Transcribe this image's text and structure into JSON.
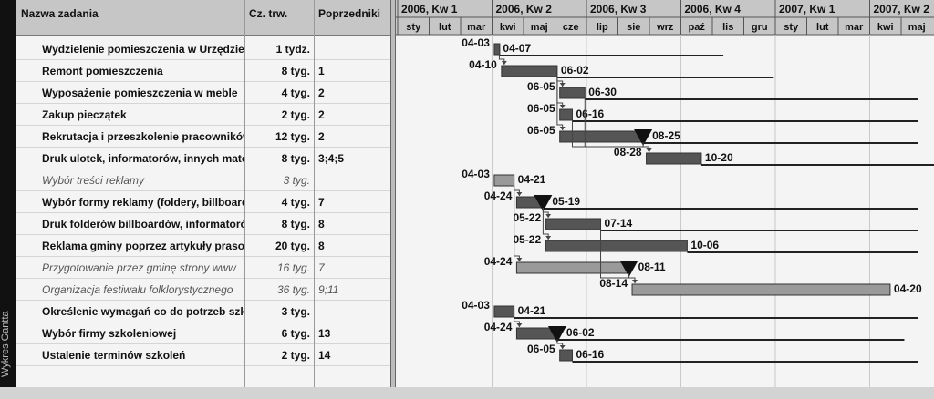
{
  "sidebar": {
    "label": "Wykres Gantta"
  },
  "columns": {
    "name": "Nazwa zadania",
    "duration": "Cz. trw.",
    "predecessors": "Poprzedniki"
  },
  "timescale": {
    "quarters": [
      "2006, Kw 1",
      "2006, Kw 2",
      "2006, Kw 3",
      "2006, Kw 4",
      "2007, Kw 1",
      "2007, Kw 2"
    ],
    "months": [
      "sty",
      "lut",
      "mar",
      "kwi",
      "maj",
      "cze",
      "lip",
      "sie",
      "wrz",
      "paź",
      "lis",
      "gru",
      "sty",
      "lut",
      "mar",
      "kwi",
      "maj"
    ]
  },
  "tasks": [
    {
      "name": "Wydzielenie pomieszczenia w Urzędzie",
      "duration": "1 tydz.",
      "predecessors": "",
      "summary": false,
      "start": 3.07,
      "end": 3.23,
      "start_label": "04-03",
      "end_label": "04-07",
      "tail": 10.35,
      "milestone": false,
      "light": false
    },
    {
      "name": "Remont pomieszczenia",
      "duration": "8 tyg.",
      "predecessors": "1",
      "summary": false,
      "start": 3.3,
      "end": 5.07,
      "start_label": "04-10",
      "end_label": "06-02",
      "tail": 11.95,
      "milestone": false,
      "light": false
    },
    {
      "name": "Wyposażenie pomieszczenia w meble",
      "duration": "4 tyg.",
      "predecessors": "2",
      "summary": false,
      "start": 5.15,
      "end": 5.95,
      "start_label": "06-05",
      "end_label": "06-30",
      "tail": 16.55,
      "milestone": false,
      "light": false
    },
    {
      "name": "Zakup pieczątek",
      "duration": "2 tyg.",
      "predecessors": "2",
      "summary": false,
      "start": 5.15,
      "end": 5.55,
      "start_label": "06-05",
      "end_label": "06-16",
      "tail": 16.55,
      "milestone": false,
      "light": false
    },
    {
      "name": "Rekrutacja i przeszkolenie pracowników",
      "duration": "12 tyg.",
      "predecessors": "2",
      "summary": false,
      "start": 5.15,
      "end": 7.8,
      "start_label": "06-05",
      "end_label": "08-25",
      "tail": 16.55,
      "milestone": true,
      "light": false
    },
    {
      "name": "Druk ulotek, informatorów, innych materiałów",
      "duration": "8 tyg.",
      "predecessors": "3;4;5",
      "summary": false,
      "start": 7.9,
      "end": 9.65,
      "start_label": "08-28",
      "end_label": "10-20",
      "tail": 17.85,
      "milestone": false,
      "light": false
    },
    {
      "name": "Wybór treści reklamy",
      "duration": "3 tyg.",
      "predecessors": "",
      "summary": true,
      "start": 3.07,
      "end": 3.7,
      "start_label": "04-03",
      "end_label": "04-21",
      "tail": null,
      "milestone": false,
      "light": true
    },
    {
      "name": "Wybór formy reklamy (foldery, billboardy)",
      "duration": "4 tyg.",
      "predecessors": "7",
      "summary": false,
      "start": 3.78,
      "end": 4.62,
      "start_label": "04-24",
      "end_label": "05-19",
      "tail": 16.55,
      "milestone": true,
      "light": false
    },
    {
      "name": "Druk folderów billboardów, informatorów",
      "duration": "8 tyg.",
      "predecessors": "8",
      "summary": false,
      "start": 4.7,
      "end": 6.45,
      "start_label": "05-22",
      "end_label": "07-14",
      "tail": 16.55,
      "milestone": false,
      "light": false
    },
    {
      "name": "Reklama gminy poprzez artykuły prasowe",
      "duration": "20 tyg.",
      "predecessors": "8",
      "summary": false,
      "start": 4.7,
      "end": 9.2,
      "start_label": "05-22",
      "end_label": "10-06",
      "tail": 16.55,
      "milestone": false,
      "light": false
    },
    {
      "name": "Przygotowanie przez gminę strony www",
      "duration": "16 tyg.",
      "predecessors": "7",
      "summary": true,
      "start": 3.78,
      "end": 7.35,
      "start_label": "04-24",
      "end_label": "08-11",
      "tail": null,
      "milestone": true,
      "light": true
    },
    {
      "name": "Organizacja festiwalu folklorystycznego",
      "duration": "36 tyg.",
      "predecessors": "9;11",
      "summary": true,
      "start": 7.45,
      "end": 15.65,
      "start_label": "08-14",
      "end_label": "04-20",
      "tail": null,
      "milestone": false,
      "light": true
    },
    {
      "name": "Określenie wymagań co do potrzeb szkoleń",
      "duration": "3 tyg.",
      "predecessors": "",
      "summary": false,
      "start": 3.07,
      "end": 3.7,
      "start_label": "04-03",
      "end_label": "04-21",
      "tail": 16.55,
      "milestone": false,
      "light": false
    },
    {
      "name": "Wybór firmy szkoleniowej",
      "duration": "6 tyg.",
      "predecessors": "13",
      "summary": false,
      "start": 3.78,
      "end": 5.07,
      "start_label": "04-24",
      "end_label": "06-02",
      "tail": 16.1,
      "milestone": true,
      "light": false
    },
    {
      "name": "Ustalenie terminów szkoleń",
      "duration": "2 tyg.",
      "predecessors": "14",
      "summary": false,
      "start": 5.15,
      "end": 5.55,
      "start_label": "06-05",
      "end_label": "06-16",
      "tail": 16.55,
      "milestone": false,
      "light": false
    }
  ],
  "colors": {
    "bar": "#555555",
    "bar_light": "#9a9a9a",
    "header": "#c6c6c6",
    "line": "#222222"
  }
}
